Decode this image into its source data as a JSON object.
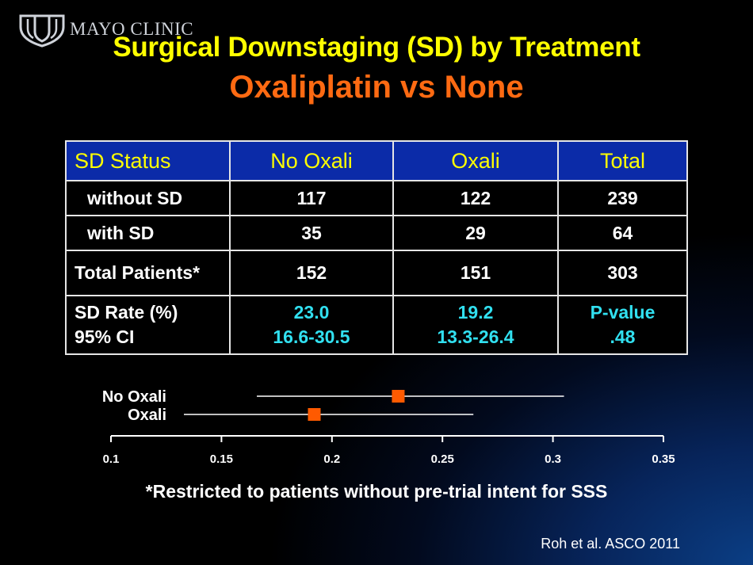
{
  "logo": {
    "text": "MAYO CLINIC"
  },
  "title": {
    "line1": "Surgical Downstaging (SD) by Treatment",
    "line2": "Oxaliplatin vs None"
  },
  "table": {
    "headers": [
      "SD Status",
      "No Oxali",
      "Oxali",
      "Total"
    ],
    "rows": [
      {
        "label": "without SD",
        "values": [
          "117",
          "122",
          "239"
        ]
      },
      {
        "label": "with SD",
        "values": [
          "35",
          "29",
          "64"
        ]
      },
      {
        "label": "Total Patients*",
        "values": [
          "152",
          "151",
          "303"
        ]
      }
    ],
    "rate_row": {
      "label_line1": "SD Rate (%)",
      "label_line2": "95% CI",
      "no_oxali": {
        "rate": "23.0",
        "ci": "16.6-30.5"
      },
      "oxali": {
        "rate": "19.2",
        "ci": "13.3-26.4"
      },
      "total": {
        "label": "P-value",
        "value": ".48"
      }
    }
  },
  "forest_plot": {
    "series": [
      {
        "name": "No Oxali",
        "estimate": 0.23,
        "ci_low": 0.166,
        "ci_high": 0.305
      },
      {
        "name": "Oxali",
        "estimate": 0.192,
        "ci_low": 0.133,
        "ci_high": 0.264
      }
    ],
    "xlim": [
      0.1,
      0.35
    ],
    "ticks": [
      0.1,
      0.15,
      0.2,
      0.25,
      0.3,
      0.35
    ],
    "tick_labels": [
      "0.1",
      "0.15",
      "0.2",
      "0.25",
      "0.3",
      "0.35"
    ]
  },
  "footnote": "*Restricted to patients without pre-trial intent for SSS",
  "citation": "Roh et al. ASCO 2011",
  "colors": {
    "title": "#ffff00",
    "subtitle": "#ff6a12",
    "header_bg": "#0b2ba8",
    "highlight_text": "#31e0f0",
    "marker": "#ff5a00"
  }
}
